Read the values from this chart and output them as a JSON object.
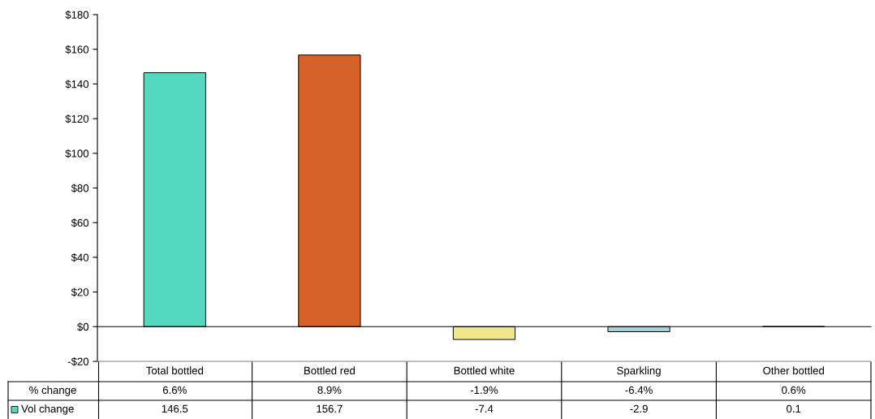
{
  "chart_data": {
    "type": "bar",
    "categories": [
      "Total bottled",
      "Bottled red",
      "Bottled white",
      "Sparkling",
      "Other bottled"
    ],
    "series": [
      {
        "name": "Vol change",
        "color": "#55d8c0",
        "colors": [
          "#55d8c0",
          "#d6622a",
          "#f0e68c",
          "#a6d3d9",
          "#7f7f7f"
        ],
        "values": [
          146.5,
          156.7,
          -7.4,
          -2.9,
          0.1
        ]
      }
    ],
    "ylim": [
      -20,
      180
    ],
    "yticks": [
      {
        "value": -20,
        "label": "-$20"
      },
      {
        "value": 0,
        "label": "$0"
      },
      {
        "value": 20,
        "label": "$20"
      },
      {
        "value": 40,
        "label": "$40"
      },
      {
        "value": 60,
        "label": "$60"
      },
      {
        "value": 80,
        "label": "$80"
      },
      {
        "value": 100,
        "label": "$100"
      },
      {
        "value": 120,
        "label": "$120"
      },
      {
        "value": 140,
        "label": "$140"
      },
      {
        "value": 160,
        "label": "$160"
      },
      {
        "value": 180,
        "label": "$180"
      }
    ],
    "data_labels": true,
    "annotations": [
      "% change",
      "6.6%",
      "8.9%",
      "-1.9%",
      "-6.4%",
      "0.6%"
    ],
    "legend": "bottom"
  }
}
